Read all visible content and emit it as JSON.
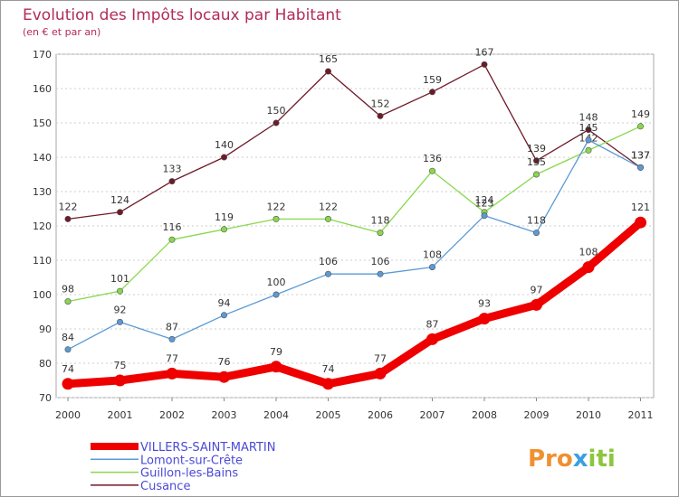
{
  "chart_data": {
    "type": "line",
    "title": "Evolution des Impôts locaux par Habitant",
    "subtitle": "(en € et par an)",
    "xlabel": "",
    "ylabel": "",
    "x": [
      "2000",
      "2001",
      "2002",
      "2003",
      "2004",
      "2005",
      "2006",
      "2007",
      "2008",
      "2009",
      "2010",
      "2011"
    ],
    "ylim": [
      70,
      170
    ],
    "yticks": [
      "70",
      "80",
      "90",
      "100",
      "110",
      "120",
      "130",
      "140",
      "150",
      "160",
      "170"
    ],
    "grid": true,
    "legend_position": "bottom-left",
    "series": [
      {
        "name": "Cusance",
        "color": "#6e1a28",
        "values": [
          122,
          124,
          133,
          140,
          150,
          165,
          152,
          159,
          167,
          139,
          148,
          137
        ]
      },
      {
        "name": "Guillon-les-Bains",
        "color": "#88d84c",
        "values": [
          98,
          101,
          116,
          119,
          122,
          122,
          118,
          136,
          124,
          135,
          142,
          149
        ]
      },
      {
        "name": "Lomont-sur-Crête",
        "color": "#5b9ad4",
        "values": [
          84,
          92,
          87,
          94,
          100,
          106,
          106,
          108,
          123,
          118,
          145,
          137
        ]
      },
      {
        "name": "VILLERS-SAINT-MARTIN",
        "color": "#ee0000",
        "values": [
          74,
          75,
          77,
          76,
          79,
          74,
          77,
          87,
          93,
          97,
          108,
          121
        ]
      }
    ],
    "legend_order": [
      "VILLERS-SAINT-MARTIN",
      "Lomont-sur-Crête",
      "Guillon-les-Bains",
      "Cusance"
    ]
  },
  "brand": {
    "prefix": "Pro",
    "x": "x",
    "suffix": "iti"
  }
}
